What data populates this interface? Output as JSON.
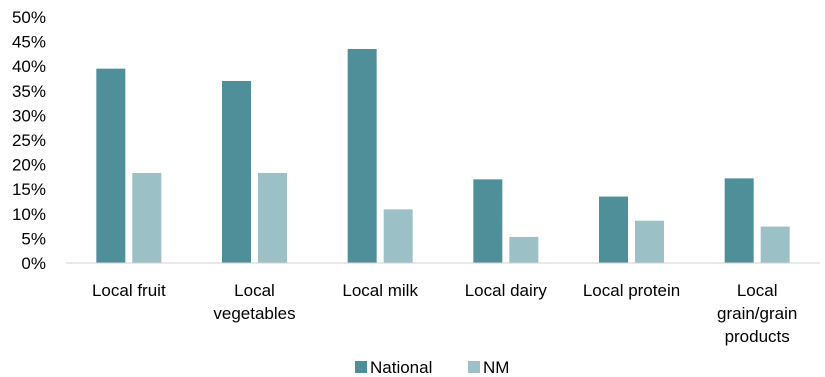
{
  "chart_data": {
    "type": "bar",
    "categories": [
      [
        "Local fruit"
      ],
      [
        "Local",
        "vegetables"
      ],
      [
        "Local milk"
      ],
      [
        "Local dairy"
      ],
      [
        "Local protein"
      ],
      [
        "Local",
        "grain/grain",
        "products"
      ]
    ],
    "series": [
      {
        "name": "National",
        "color": "#4f8f99",
        "values": [
          39.5,
          37,
          43.5,
          17,
          13.5,
          17.2
        ]
      },
      {
        "name": "NM",
        "color": "#9bc0c6",
        "values": [
          18.3,
          18.3,
          10.9,
          5.3,
          8.6,
          7.4
        ]
      }
    ],
    "yticks": [
      "0%",
      "5%",
      "10%",
      "15%",
      "20%",
      "25%",
      "30%",
      "35%",
      "40%",
      "45%",
      "50%"
    ],
    "ylim": [
      0,
      50
    ],
    "grid": false,
    "legend_position": "bottom"
  }
}
